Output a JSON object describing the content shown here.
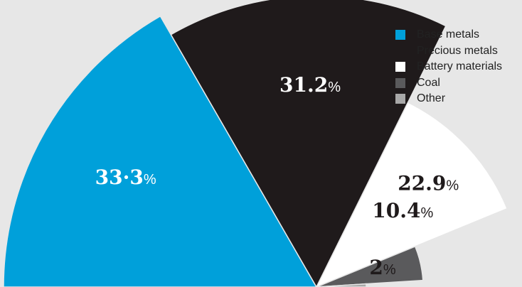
{
  "chart_data": {
    "type": "pie",
    "categories": [
      "Base metals",
      "Precious metals",
      "Battery materials",
      "Coal",
      "Other"
    ],
    "values": [
      33.3,
      31.2,
      22.9,
      10.4,
      2
    ],
    "value_labels": [
      "33·3",
      "31.2",
      "22.9",
      "10.4",
      "2"
    ],
    "unit": "%",
    "colors": [
      "#00a0da",
      "#1f1a1b",
      "#ffffff",
      "#5a5a5c",
      "#a8a8a8"
    ],
    "label_colors": [
      "#ffffff",
      "#ffffff",
      "#1f1a1b",
      "#1f1a1b",
      "#1f1a1b"
    ],
    "legend_position": "top-right",
    "background": "#e7e7e7"
  }
}
